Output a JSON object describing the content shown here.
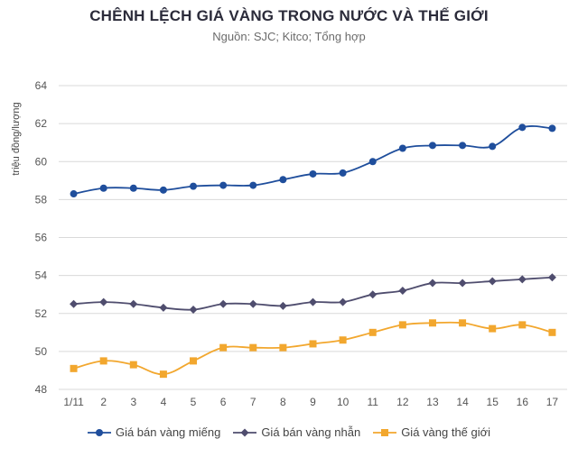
{
  "title": "CHÊNH LỆCH GIÁ VÀNG TRONG NƯỚC VÀ THẾ GIỚI",
  "subtitle": "Nguồn: SJC; Kitco; Tổng hợp",
  "chart_data": {
    "type": "line",
    "ylabel": "triệu đồng/lượng",
    "xlabel": "",
    "ylim": [
      48,
      64
    ],
    "yticks": [
      48,
      50,
      52,
      54,
      56,
      58,
      60,
      62,
      64
    ],
    "categories": [
      "1/11",
      "2",
      "3",
      "4",
      "5",
      "6",
      "7",
      "8",
      "9",
      "10",
      "11",
      "12",
      "13",
      "14",
      "15",
      "16",
      "17"
    ],
    "grid": true,
    "legend_position": "bottom",
    "series": [
      {
        "name": "Giá bán vàng miếng",
        "color": "#1f4e9c",
        "marker": "circle",
        "values": [
          58.3,
          58.6,
          58.6,
          58.5,
          58.7,
          58.75,
          58.75,
          59.05,
          59.35,
          59.4,
          60.0,
          60.7,
          60.85,
          60.85,
          60.8,
          61.8,
          61.75
        ]
      },
      {
        "name": "Giá bán vàng nhẫn",
        "color": "#4f4d6e",
        "marker": "diamond",
        "values": [
          52.5,
          52.6,
          52.5,
          52.3,
          52.2,
          52.5,
          52.5,
          52.4,
          52.6,
          52.6,
          53.0,
          53.2,
          53.6,
          53.6,
          53.7,
          53.8,
          53.9
        ]
      },
      {
        "name": "Giá vàng thế giới",
        "color": "#f2a72e",
        "marker": "square",
        "values": [
          49.1,
          49.5,
          49.3,
          48.8,
          49.5,
          50.2,
          50.2,
          50.2,
          50.4,
          50.6,
          51.0,
          51.4,
          51.5,
          51.5,
          51.2,
          51.4,
          51.0
        ]
      }
    ]
  }
}
